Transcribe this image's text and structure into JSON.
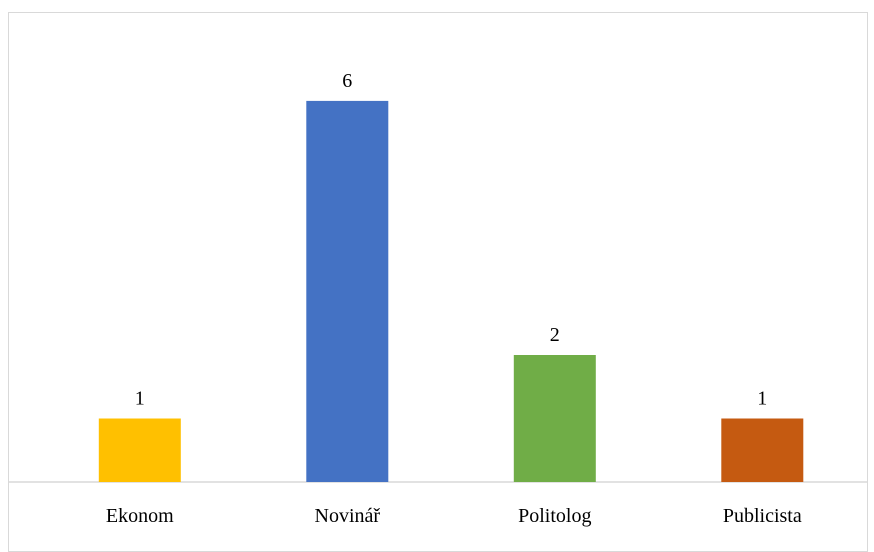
{
  "chart_data": {
    "type": "bar",
    "title": "",
    "xlabel": "",
    "ylabel": "",
    "ylim": [
      0,
      6.99
    ],
    "grid": false,
    "legend": "none",
    "categories": [
      "Ekonom",
      "Novinář",
      "Politolog",
      "Publicista"
    ],
    "values": [
      1,
      6,
      2,
      1
    ],
    "data_labels": [
      "1",
      "6",
      "2",
      "1"
    ],
    "colors": [
      "#FFC000",
      "#4472C4",
      "#70AD47",
      "#C55A11"
    ],
    "axis_color": "#d9d9d9"
  }
}
